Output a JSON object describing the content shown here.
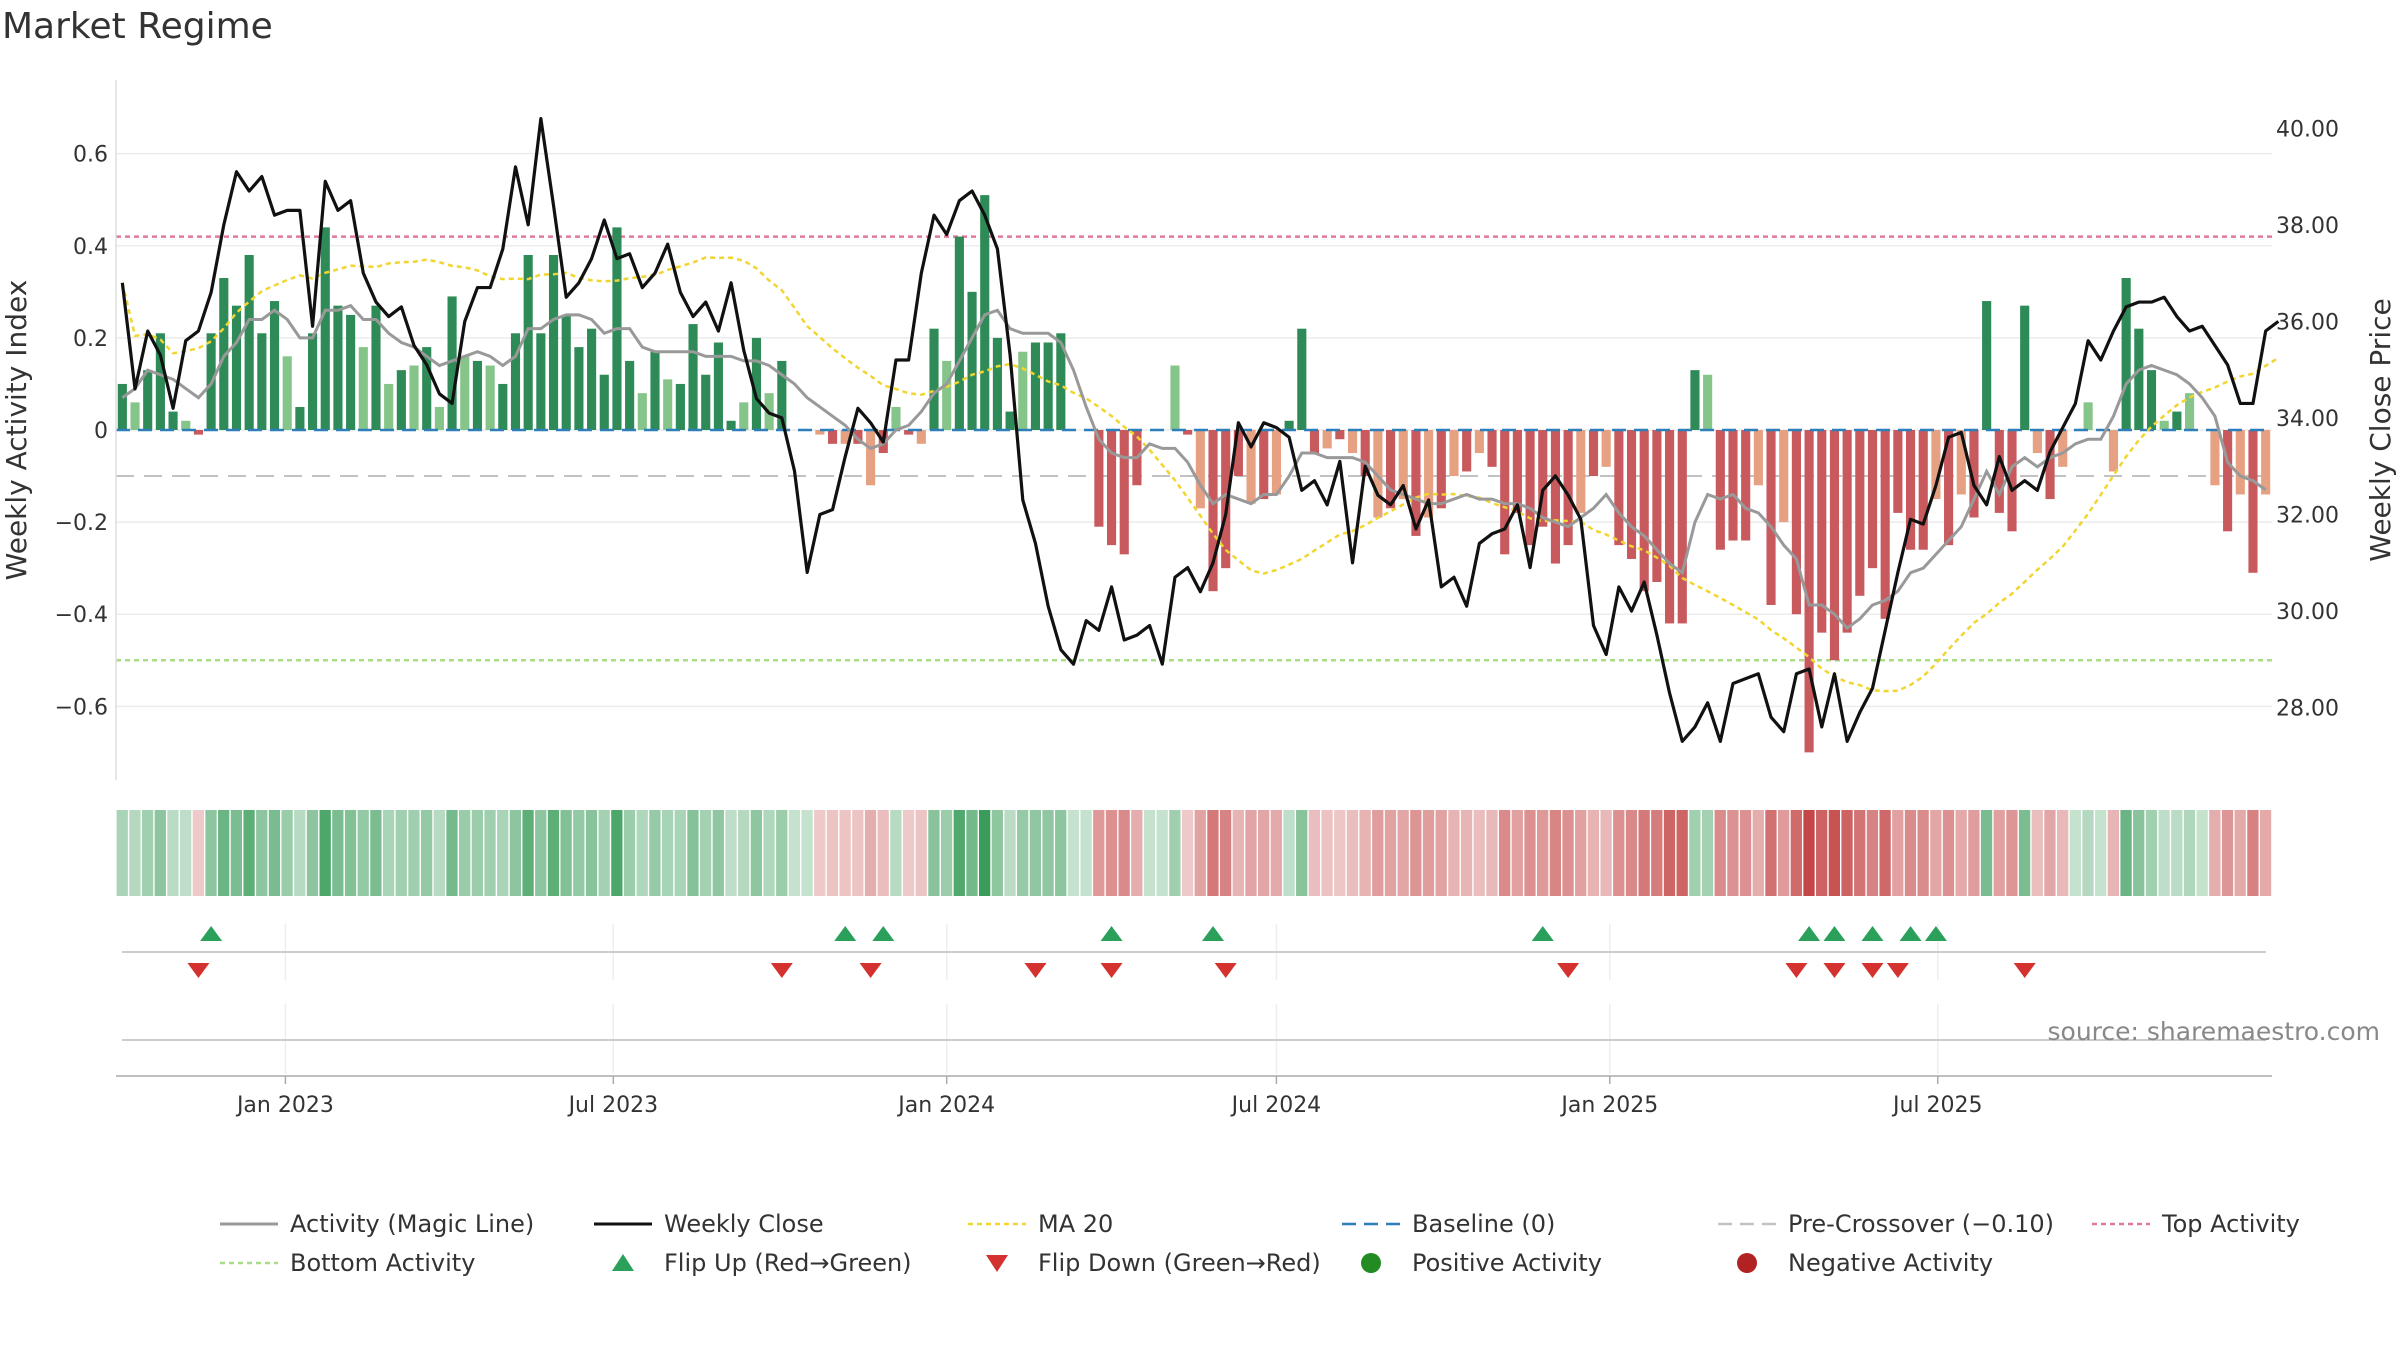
{
  "chart_data": {
    "type": "bar",
    "title": "Market Regime",
    "ylabel_left": "Weekly Activity Index",
    "ylabel_right": "Weekly Close Price",
    "ylim_left": [
      -0.76,
      0.76
    ],
    "ylim_right": [
      26.5,
      41.0
    ],
    "left_ticks": [
      {
        "v": 0.6,
        "label": "0.6"
      },
      {
        "v": 0.4,
        "label": "0.4"
      },
      {
        "v": 0.2,
        "label": "0.2"
      },
      {
        "v": 0,
        "label": "0"
      },
      {
        "v": -0.2,
        "label": "−0.2"
      },
      {
        "v": -0.4,
        "label": "−0.4"
      },
      {
        "v": -0.6,
        "label": "−0.6"
      }
    ],
    "right_ticks": [
      {
        "v": 40,
        "label": "40.00"
      },
      {
        "v": 38,
        "label": "38.00"
      },
      {
        "v": 36,
        "label": "36.00"
      },
      {
        "v": 34,
        "label": "34.00"
      },
      {
        "v": 32,
        "label": "32.00"
      },
      {
        "v": 30,
        "label": "30.00"
      },
      {
        "v": 28,
        "label": "28.00"
      }
    ],
    "x_start": "2022-10-03",
    "x_step_days": 7,
    "x_ticks": [
      {
        "date": "2023-01-01",
        "label": "Jan 2023"
      },
      {
        "date": "2023-07-01",
        "label": "Jul 2023"
      },
      {
        "date": "2024-01-01",
        "label": "Jan 2024"
      },
      {
        "date": "2024-07-01",
        "label": "Jul 2024"
      },
      {
        "date": "2025-01-01",
        "label": "Jan 2025"
      },
      {
        "date": "2025-07-01",
        "label": "Jul 2025"
      }
    ],
    "thresholds": {
      "top_activity": 0.42,
      "bottom_activity": -0.5,
      "pre_crossover": -0.1,
      "baseline": 0
    },
    "activity": [
      0.1,
      0.06,
      0.13,
      0.21,
      0.04,
      0.02,
      -0.01,
      0.21,
      0.33,
      0.27,
      0.38,
      0.21,
      0.28,
      0.16,
      0.05,
      0.21,
      0.44,
      0.27,
      0.25,
      0.18,
      0.27,
      0.1,
      0.13,
      0.14,
      0.18,
      0.05,
      0.29,
      0.16,
      0.15,
      0.14,
      0.1,
      0.21,
      0.38,
      0.21,
      0.38,
      0.25,
      0.18,
      0.22,
      0.12,
      0.44,
      0.15,
      0.08,
      0.17,
      0.11,
      0.1,
      0.23,
      0.12,
      0.19,
      0.02,
      0.06,
      0.2,
      0.08,
      0.15,
      0.0,
      0.0,
      -0.01,
      -0.03,
      -0.03,
      -0.03,
      -0.12,
      -0.05,
      0.05,
      -0.01,
      -0.03,
      0.22,
      0.15,
      0.42,
      0.3,
      0.51,
      0.2,
      0.04,
      0.17,
      0.19,
      0.19,
      0.21,
      0.0,
      0.0,
      -0.21,
      -0.25,
      -0.27,
      -0.12,
      0.0,
      0.0,
      0.14,
      -0.01,
      -0.17,
      -0.35,
      -0.3,
      -0.1,
      -0.16,
      -0.15,
      -0.14,
      0.02,
      0.22,
      -0.05,
      -0.04,
      -0.02,
      -0.05,
      -0.1,
      -0.19,
      -0.17,
      -0.15,
      -0.23,
      -0.19,
      -0.17,
      -0.1,
      -0.09,
      -0.05,
      -0.08,
      -0.27,
      -0.18,
      -0.25,
      -0.21,
      -0.29,
      -0.25,
      -0.18,
      -0.1,
      -0.08,
      -0.25,
      -0.28,
      -0.35,
      -0.33,
      -0.42,
      -0.42,
      0.13,
      0.12,
      -0.26,
      -0.24,
      -0.24,
      -0.12,
      -0.38,
      -0.2,
      -0.4,
      -0.7,
      -0.44,
      -0.5,
      -0.44,
      -0.36,
      -0.3,
      -0.41,
      -0.18,
      -0.26,
      -0.26,
      -0.15,
      -0.25,
      -0.14,
      -0.19,
      0.28,
      -0.18,
      -0.22,
      0.27,
      -0.05,
      -0.15,
      -0.08,
      0.0,
      0.06,
      0.0,
      -0.09,
      0.33,
      0.22,
      0.13,
      0.02,
      0.04,
      0.08,
      0.0,
      -0.12,
      -0.22,
      -0.14,
      -0.31,
      -0.14
    ],
    "magic_line": [
      0.07,
      0.09,
      0.13,
      0.12,
      0.11,
      0.09,
      0.07,
      0.1,
      0.16,
      0.19,
      0.24,
      0.24,
      0.26,
      0.24,
      0.2,
      0.2,
      0.26,
      0.26,
      0.27,
      0.24,
      0.24,
      0.21,
      0.19,
      0.18,
      0.16,
      0.14,
      0.15,
      0.16,
      0.17,
      0.16,
      0.14,
      0.16,
      0.22,
      0.22,
      0.24,
      0.25,
      0.25,
      0.24,
      0.21,
      0.22,
      0.22,
      0.18,
      0.17,
      0.17,
      0.17,
      0.17,
      0.16,
      0.16,
      0.16,
      0.15,
      0.15,
      0.14,
      0.12,
      0.1,
      0.07,
      0.05,
      0.03,
      0.01,
      -0.02,
      -0.04,
      -0.03,
      0.0,
      0.01,
      0.04,
      0.08,
      0.1,
      0.15,
      0.2,
      0.25,
      0.26,
      0.22,
      0.21,
      0.21,
      0.21,
      0.19,
      0.13,
      0.05,
      -0.02,
      -0.05,
      -0.06,
      -0.06,
      -0.03,
      -0.04,
      -0.04,
      -0.07,
      -0.12,
      -0.16,
      -0.14,
      -0.15,
      -0.16,
      -0.14,
      -0.14,
      -0.1,
      -0.05,
      -0.05,
      -0.06,
      -0.06,
      -0.06,
      -0.07,
      -0.1,
      -0.13,
      -0.14,
      -0.15,
      -0.16,
      -0.16,
      -0.15,
      -0.14,
      -0.15,
      -0.15,
      -0.16,
      -0.16,
      -0.17,
      -0.19,
      -0.2,
      -0.21,
      -0.19,
      -0.17,
      -0.14,
      -0.18,
      -0.21,
      -0.23,
      -0.26,
      -0.29,
      -0.31,
      -0.2,
      -0.14,
      -0.15,
      -0.14,
      -0.17,
      -0.18,
      -0.21,
      -0.25,
      -0.28,
      -0.38,
      -0.38,
      -0.4,
      -0.43,
      -0.41,
      -0.38,
      -0.37,
      -0.35,
      -0.31,
      -0.3,
      -0.27,
      -0.24,
      -0.21,
      -0.15,
      -0.09,
      -0.14,
      -0.08,
      -0.06,
      -0.08,
      -0.06,
      -0.05,
      -0.03,
      -0.02,
      -0.02,
      0.03,
      0.1,
      0.13,
      0.14,
      0.13,
      0.12,
      0.1,
      0.07,
      0.03,
      -0.07,
      -0.1,
      -0.11,
      -0.13
    ],
    "weekly_close": [
      36.8,
      34.6,
      35.8,
      35.3,
      34.2,
      35.6,
      35.8,
      36.6,
      38.0,
      39.1,
      38.7,
      39.0,
      38.2,
      38.3,
      38.3,
      35.9,
      38.9,
      38.3,
      38.5,
      37.0,
      36.4,
      36.1,
      36.3,
      35.5,
      35.1,
      34.5,
      34.3,
      36.0,
      36.7,
      36.7,
      37.5,
      39.2,
      38.0,
      40.2,
      38.4,
      36.5,
      36.8,
      37.3,
      38.1,
      37.3,
      37.4,
      36.7,
      37.0,
      37.6,
      36.6,
      36.1,
      36.4,
      35.8,
      36.8,
      35.4,
      34.4,
      34.1,
      34.0,
      32.9,
      30.8,
      32.0,
      32.1,
      33.2,
      34.2,
      33.9,
      33.5,
      35.2,
      35.2,
      37.0,
      38.2,
      37.8,
      38.5,
      38.7,
      38.2,
      37.5,
      35.3,
      32.3,
      31.4,
      30.1,
      29.2,
      28.9,
      29.8,
      29.6,
      30.5,
      29.4,
      29.5,
      29.7,
      28.9,
      30.7,
      30.9,
      30.4,
      31.0,
      32.0,
      33.9,
      33.4,
      33.9,
      33.8,
      33.6,
      32.5,
      32.7,
      32.2,
      33.1,
      31.0,
      33.0,
      32.4,
      32.2,
      32.6,
      31.7,
      32.3,
      30.5,
      30.7,
      30.1,
      31.4,
      31.6,
      31.7,
      32.2,
      30.9,
      32.5,
      32.8,
      32.4,
      31.9,
      29.7,
      29.1,
      30.5,
      30.0,
      30.6,
      29.5,
      28.3,
      27.3,
      27.6,
      28.1,
      27.3,
      28.5,
      28.6,
      28.7,
      27.8,
      27.5,
      28.7,
      28.8,
      27.6,
      28.7,
      27.3,
      27.9,
      28.4,
      29.6,
      30.8,
      31.9,
      31.8,
      32.6,
      33.6,
      33.7,
      32.6,
      32.2,
      33.2,
      32.5,
      32.7,
      32.5,
      33.3,
      33.8,
      34.3,
      35.6,
      35.2,
      35.8,
      36.3,
      36.4,
      36.4,
      36.5,
      36.1,
      35.8,
      35.9,
      35.5,
      35.1,
      34.3,
      34.3,
      35.8,
      36.0
    ]
  },
  "flip_up_weeks": [
    7,
    57,
    60,
    78,
    86,
    112,
    133,
    135,
    138,
    141,
    143
  ],
  "flip_down_weeks": [
    6,
    52,
    59,
    72,
    78,
    87,
    114,
    132,
    135,
    138,
    140,
    150
  ],
  "legend": [
    {
      "key": "magic",
      "label": "Activity (Magic Line)"
    },
    {
      "key": "close",
      "label": "Weekly Close"
    },
    {
      "key": "ma20",
      "label": "MA 20"
    },
    {
      "key": "baseline",
      "label": "Baseline (0)"
    },
    {
      "key": "precross",
      "label": "Pre-Crossover (−0.10)"
    },
    {
      "key": "top",
      "label": "Top Activity"
    },
    {
      "key": "bottom",
      "label": "Bottom Activity"
    },
    {
      "key": "flipup",
      "label": "Flip Up (Red→Green)"
    },
    {
      "key": "flipdown",
      "label": "Flip Down (Green→Red)"
    },
    {
      "key": "pos",
      "label": "Positive Activity"
    },
    {
      "key": "neg",
      "label": "Negative Activity"
    }
  ],
  "source_text": "source: sharemaestro.com",
  "colors": {
    "pos_strong": "#2e8b57",
    "pos_weak": "#86c58a",
    "neg_strong": "#c85a5e",
    "neg_weak": "#e6a183",
    "magic": "#999999",
    "close": "#111111",
    "ma20": "#f1d531",
    "baseline": "#2c7fb8",
    "precross": "#c2c2c2",
    "top": "#e07a9a",
    "bottom": "#a8dc86",
    "flip_up": "#2aa05a",
    "flip_down": "#d4322e",
    "dot_pos": "#228b22",
    "dot_neg": "#b22222"
  }
}
